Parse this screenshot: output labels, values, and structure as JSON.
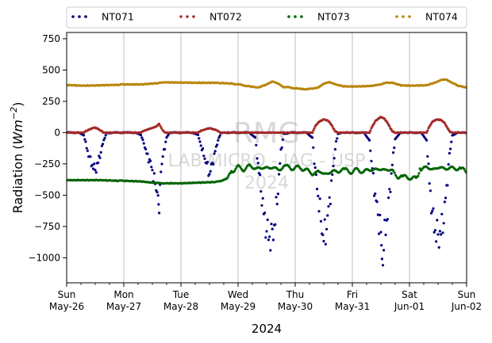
{
  "chart_data": {
    "type": "scatter",
    "title": "",
    "ylabel_prefix": "Radiation (",
    "ylabel_unit": "Wm",
    "ylabel_exp": "−2",
    "ylabel_suffix": ")",
    "xlabel": "2024",
    "xlim": [
      0,
      7
    ],
    "ylim": [
      -1200,
      800
    ],
    "y_ticks": [
      750,
      500,
      250,
      0,
      -250,
      -500,
      -750,
      -1000
    ],
    "y_tick_labels": [
      "750",
      "500",
      "250",
      "0",
      "−250",
      "−500",
      "−750",
      "−1000"
    ],
    "x_ticks": [
      {
        "x": 0,
        "day": "Sun",
        "date": "May-26"
      },
      {
        "x": 1,
        "day": "Mon",
        "date": "May-27"
      },
      {
        "x": 2,
        "day": "Tue",
        "date": "May-28"
      },
      {
        "x": 3,
        "day": "Wed",
        "date": "May-29"
      },
      {
        "x": 4,
        "day": "Thu",
        "date": "May-30"
      },
      {
        "x": 5,
        "day": "Fri",
        "date": "May-31"
      },
      {
        "x": 6,
        "day": "Sat",
        "date": "Jun-01"
      },
      {
        "x": 7,
        "day": "Sun",
        "date": "Jun-02"
      }
    ],
    "grid": "vertical",
    "legend_position": "top",
    "watermark": [
      "RMG",
      "LAB MICRO - IAG - USP",
      "2024"
    ],
    "series": [
      {
        "name": "NT071",
        "color": "#000080",
        "points": [
          [
            0,
            0
          ],
          [
            0.1,
            0
          ],
          [
            0.2,
            0
          ],
          [
            0.3,
            -20
          ],
          [
            0.35,
            -120
          ],
          [
            0.4,
            -200
          ],
          [
            0.45,
            -260
          ],
          [
            0.5,
            -300
          ],
          [
            0.55,
            -240
          ],
          [
            0.6,
            -150
          ],
          [
            0.65,
            -60
          ],
          [
            0.7,
            -5
          ],
          [
            0.8,
            0
          ],
          [
            0.9,
            0
          ],
          [
            1,
            0
          ],
          [
            1.1,
            0
          ],
          [
            1.2,
            0
          ],
          [
            1.3,
            -20
          ],
          [
            1.35,
            -80
          ],
          [
            1.4,
            -170
          ],
          [
            1.45,
            -220
          ],
          [
            1.5,
            -300
          ],
          [
            1.55,
            -420
          ],
          [
            1.6,
            -480
          ],
          [
            1.62,
            -600
          ],
          [
            1.65,
            -300
          ],
          [
            1.7,
            -150
          ],
          [
            1.75,
            -40
          ],
          [
            1.8,
            0
          ],
          [
            1.9,
            0
          ],
          [
            2,
            0
          ],
          [
            2.1,
            0
          ],
          [
            2.2,
            0
          ],
          [
            2.3,
            -20
          ],
          [
            2.35,
            -100
          ],
          [
            2.4,
            -180
          ],
          [
            2.45,
            -250
          ],
          [
            2.5,
            -330
          ],
          [
            2.55,
            -250
          ],
          [
            2.6,
            -150
          ],
          [
            2.65,
            -60
          ],
          [
            2.7,
            -5
          ],
          [
            2.8,
            0
          ],
          [
            2.9,
            0
          ],
          [
            3,
            0
          ],
          [
            3.1,
            0
          ],
          [
            3.2,
            0
          ],
          [
            3.3,
            -40
          ],
          [
            3.35,
            -250
          ],
          [
            3.4,
            -450
          ],
          [
            3.45,
            -650
          ],
          [
            3.5,
            -780
          ],
          [
            3.55,
            -840
          ],
          [
            3.6,
            -820
          ],
          [
            3.65,
            -700
          ],
          [
            3.7,
            -450
          ],
          [
            3.75,
            -150
          ],
          [
            3.8,
            -10
          ],
          [
            3.9,
            0
          ],
          [
            4,
            0
          ],
          [
            4.1,
            0
          ],
          [
            4.2,
            0
          ],
          [
            4.3,
            -40
          ],
          [
            4.35,
            -300
          ],
          [
            4.4,
            -500
          ],
          [
            4.45,
            -700
          ],
          [
            4.5,
            -860
          ],
          [
            4.55,
            -750
          ],
          [
            4.6,
            -550
          ],
          [
            4.65,
            -350
          ],
          [
            4.7,
            -120
          ],
          [
            4.75,
            -10
          ],
          [
            4.85,
            0
          ],
          [
            5,
            0
          ],
          [
            5.1,
            0
          ],
          [
            5.2,
            0
          ],
          [
            5.3,
            -60
          ],
          [
            5.35,
            -300
          ],
          [
            5.4,
            -500
          ],
          [
            5.45,
            -650
          ],
          [
            5.5,
            -800
          ],
          [
            5.52,
            -1000
          ],
          [
            5.55,
            -900
          ],
          [
            5.6,
            -700
          ],
          [
            5.65,
            -500
          ],
          [
            5.7,
            -250
          ],
          [
            5.75,
            -50
          ],
          [
            5.85,
            0
          ],
          [
            6,
            0
          ],
          [
            6.1,
            0
          ],
          [
            6.2,
            0
          ],
          [
            6.3,
            -60
          ],
          [
            6.35,
            -400
          ],
          [
            6.4,
            -650
          ],
          [
            6.45,
            -780
          ],
          [
            6.5,
            -830
          ],
          [
            6.55,
            -800
          ],
          [
            6.6,
            -680
          ],
          [
            6.65,
            -450
          ],
          [
            6.7,
            -180
          ],
          [
            6.75,
            -20
          ],
          [
            6.85,
            0
          ],
          [
            7,
            0
          ]
        ]
      },
      {
        "name": "NT072",
        "color": "#a52a2a",
        "points": [
          [
            0,
            0
          ],
          [
            0.3,
            0
          ],
          [
            0.35,
            15
          ],
          [
            0.4,
            25
          ],
          [
            0.45,
            35
          ],
          [
            0.5,
            40
          ],
          [
            0.55,
            30
          ],
          [
            0.6,
            15
          ],
          [
            0.65,
            0
          ],
          [
            1,
            0
          ],
          [
            1.3,
            0
          ],
          [
            1.35,
            15
          ],
          [
            1.45,
            30
          ],
          [
            1.55,
            45
          ],
          [
            1.62,
            70
          ],
          [
            1.68,
            20
          ],
          [
            1.72,
            0
          ],
          [
            2,
            0
          ],
          [
            2.3,
            0
          ],
          [
            2.35,
            15
          ],
          [
            2.45,
            30
          ],
          [
            2.5,
            35
          ],
          [
            2.55,
            30
          ],
          [
            2.62,
            20
          ],
          [
            2.7,
            0
          ],
          [
            3,
            0
          ],
          [
            4,
            0
          ],
          [
            4.3,
            0
          ],
          [
            4.35,
            50
          ],
          [
            4.4,
            80
          ],
          [
            4.45,
            95
          ],
          [
            4.5,
            105
          ],
          [
            4.55,
            100
          ],
          [
            4.6,
            85
          ],
          [
            4.65,
            50
          ],
          [
            4.7,
            10
          ],
          [
            4.75,
            0
          ],
          [
            5,
            0
          ],
          [
            5.3,
            0
          ],
          [
            5.35,
            50
          ],
          [
            5.4,
            90
          ],
          [
            5.45,
            110
          ],
          [
            5.5,
            125
          ],
          [
            5.55,
            115
          ],
          [
            5.6,
            90
          ],
          [
            5.65,
            50
          ],
          [
            5.7,
            10
          ],
          [
            5.75,
            0
          ],
          [
            6,
            0
          ],
          [
            6.3,
            0
          ],
          [
            6.35,
            50
          ],
          [
            6.4,
            85
          ],
          [
            6.45,
            100
          ],
          [
            6.5,
            105
          ],
          [
            6.55,
            100
          ],
          [
            6.6,
            85
          ],
          [
            6.65,
            50
          ],
          [
            6.7,
            10
          ],
          [
            6.75,
            0
          ],
          [
            7,
            0
          ]
        ]
      },
      {
        "name": "NT073",
        "color": "#006400",
        "points": [
          [
            0,
            -380
          ],
          [
            0.3,
            -380
          ],
          [
            0.6,
            -380
          ],
          [
            0.9,
            -385
          ],
          [
            1,
            -385
          ],
          [
            1.3,
            -390
          ],
          [
            1.5,
            -400
          ],
          [
            1.7,
            -405
          ],
          [
            2,
            -405
          ],
          [
            2.3,
            -400
          ],
          [
            2.6,
            -395
          ],
          [
            2.7,
            -385
          ],
          [
            2.8,
            -370
          ],
          [
            2.85,
            -330
          ],
          [
            2.9,
            -300
          ],
          [
            3,
            -280
          ],
          [
            3.1,
            -290
          ],
          [
            3.2,
            -270
          ],
          [
            3.3,
            -280
          ],
          [
            3.4,
            -290
          ],
          [
            3.5,
            -275
          ],
          [
            3.6,
            -285
          ],
          [
            3.7,
            -290
          ],
          [
            3.8,
            -280
          ],
          [
            3.9,
            -275
          ],
          [
            4,
            -285
          ],
          [
            4.1,
            -280
          ],
          [
            4.2,
            -300
          ],
          [
            4.3,
            -330
          ],
          [
            4.4,
            -310
          ],
          [
            4.5,
            -330
          ],
          [
            4.6,
            -320
          ],
          [
            4.7,
            -310
          ],
          [
            4.8,
            -300
          ],
          [
            4.9,
            -305
          ],
          [
            5,
            -310
          ],
          [
            5.1,
            -300
          ],
          [
            5.2,
            -310
          ],
          [
            5.3,
            -300
          ],
          [
            5.4,
            -290
          ],
          [
            5.5,
            -300
          ],
          [
            5.6,
            -290
          ],
          [
            5.7,
            -310
          ],
          [
            5.8,
            -350
          ],
          [
            5.9,
            -360
          ],
          [
            6,
            -355
          ],
          [
            6.1,
            -370
          ],
          [
            6.15,
            -340
          ],
          [
            6.2,
            -290
          ],
          [
            6.3,
            -280
          ],
          [
            6.4,
            -290
          ],
          [
            6.5,
            -285
          ],
          [
            6.6,
            -280
          ],
          [
            6.7,
            -290
          ],
          [
            6.8,
            -280
          ],
          [
            6.9,
            -290
          ],
          [
            7,
            -320
          ]
        ]
      },
      {
        "name": "NT074",
        "color": "#b8860b",
        "points": [
          [
            0,
            380
          ],
          [
            0.3,
            375
          ],
          [
            0.6,
            378
          ],
          [
            0.9,
            382
          ],
          [
            1,
            385
          ],
          [
            1.3,
            385
          ],
          [
            1.6,
            395
          ],
          [
            1.7,
            402
          ],
          [
            2,
            400
          ],
          [
            2.3,
            398
          ],
          [
            2.6,
            398
          ],
          [
            2.9,
            392
          ],
          [
            3,
            385
          ],
          [
            3.2,
            370
          ],
          [
            3.35,
            360
          ],
          [
            3.5,
            385
          ],
          [
            3.6,
            410
          ],
          [
            3.7,
            390
          ],
          [
            3.8,
            365
          ],
          [
            4,
            355
          ],
          [
            4.2,
            345
          ],
          [
            4.4,
            360
          ],
          [
            4.5,
            390
          ],
          [
            4.6,
            405
          ],
          [
            4.7,
            385
          ],
          [
            4.85,
            370
          ],
          [
            5,
            368
          ],
          [
            5.3,
            372
          ],
          [
            5.5,
            385
          ],
          [
            5.6,
            400
          ],
          [
            5.7,
            398
          ],
          [
            5.85,
            378
          ],
          [
            6,
            375
          ],
          [
            6.3,
            378
          ],
          [
            6.45,
            400
          ],
          [
            6.55,
            420
          ],
          [
            6.65,
            425
          ],
          [
            6.75,
            395
          ],
          [
            6.85,
            375
          ],
          [
            7,
            360
          ]
        ]
      }
    ]
  }
}
